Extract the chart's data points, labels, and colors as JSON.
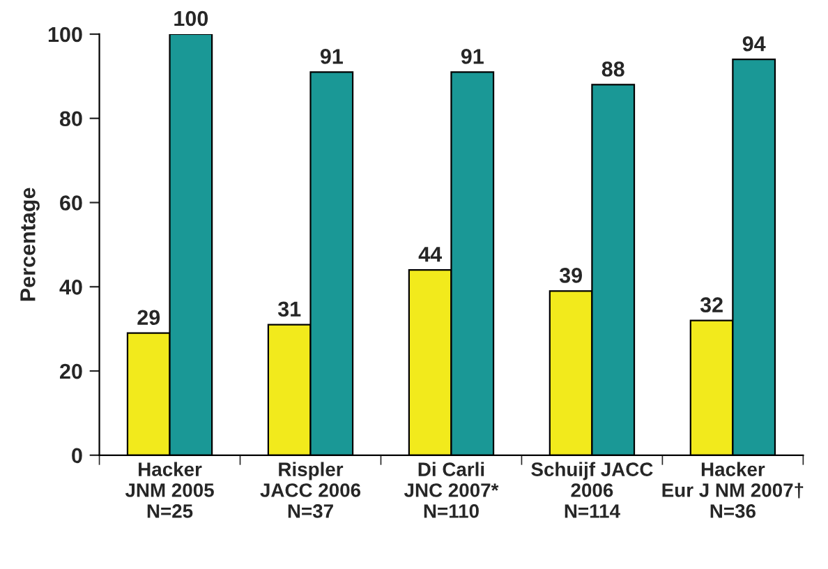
{
  "chart_data": {
    "type": "bar",
    "ylabel": "Percentage",
    "categories": [
      "Hacker\nJNM 2005\nN=25",
      "Rispler\nJACC 2006\nN=37",
      "Di Carli\nJNC 2007*\nN=110",
      "Schuijf JACC\n2006\nN=114",
      "Hacker\nEur J NM 2007†\nN=36"
    ],
    "series": [
      {
        "color": "#f2ea1c",
        "values": [
          29,
          31,
          44,
          39,
          32
        ]
      },
      {
        "color": "#1a9896",
        "values": [
          100,
          91,
          91,
          88,
          94
        ]
      }
    ],
    "ylim": [
      0,
      100
    ],
    "yticks": [
      0,
      20,
      40,
      60,
      80,
      100
    ],
    "data_labels": true,
    "grid": false
  }
}
